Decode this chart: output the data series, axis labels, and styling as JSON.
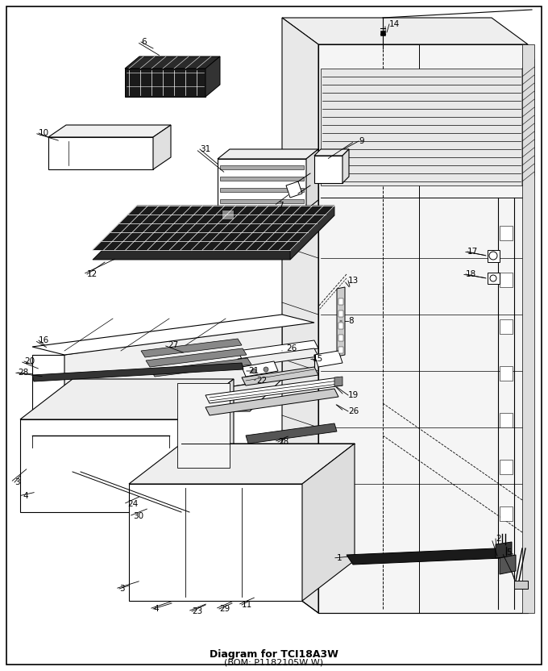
{
  "title": "Diagram for TCI18A3W",
  "subtitle": "(BOM: P1182105W W)",
  "bg": "#ffffff",
  "lc": "#000000",
  "fig_w": 6.8,
  "fig_h": 8.32,
  "dpi": 100,
  "lw_main": 0.8,
  "lw_thin": 0.5,
  "lw_thick": 1.2,
  "label_fs": 7.5,
  "title_fs": 9,
  "sub_fs": 8
}
